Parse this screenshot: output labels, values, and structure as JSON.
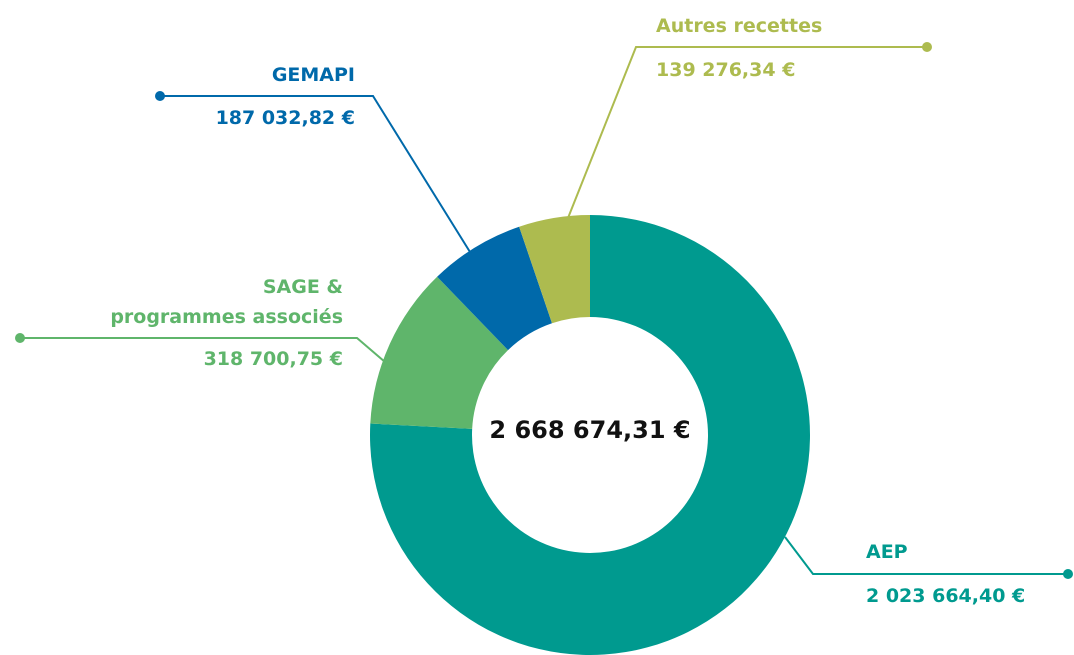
{
  "chart_data": {
    "type": "donut",
    "categories": [
      "AEP",
      "SAGE &\nprogrammes associés",
      "GEMAPI",
      "Autres recettes"
    ],
    "values": [
      2023664.4,
      318700.75,
      187032.82,
      139276.34
    ],
    "value_labels": [
      "2 023 664,40 €",
      "318 700,75 €",
      "187 032,82 €",
      "139 276,34 €"
    ],
    "colors": [
      "#009a8f",
      "#5fb56b",
      "#0069aa",
      "#adbb4f"
    ],
    "center_label": "2 668 674,31 €"
  }
}
